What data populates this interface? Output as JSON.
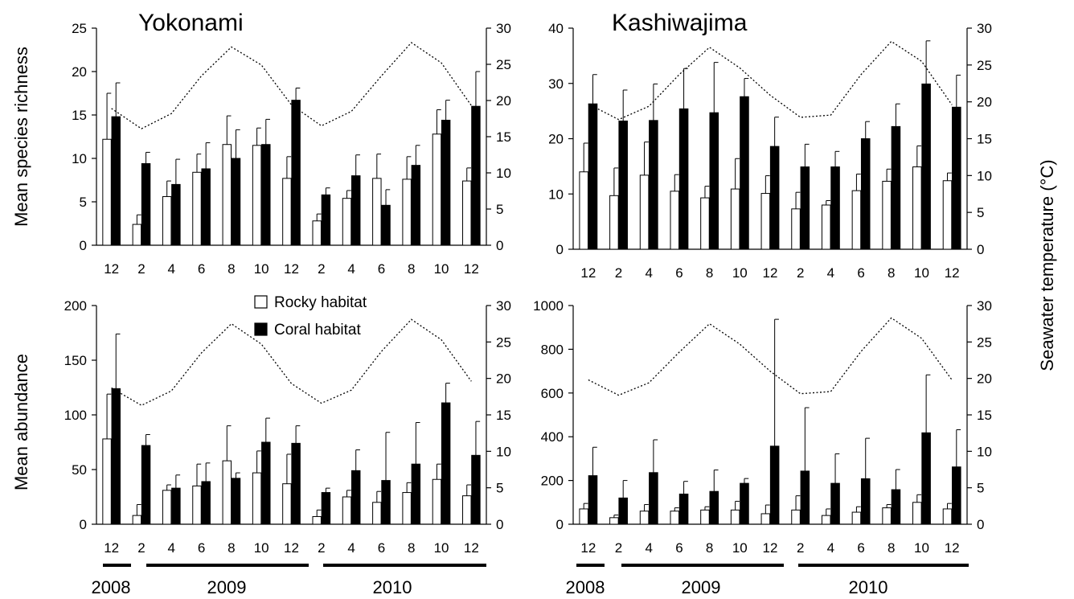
{
  "figure": {
    "titles": {
      "yokonami": "Yokonami",
      "kashiwajima": "Kashiwajima"
    },
    "ylabels": {
      "richness": "Mean species richness",
      "abundance": "Mean abundance",
      "temperature": "Seawater temperature (°C)"
    },
    "legend": {
      "rocky": "Rocky habitat",
      "coral": "Coral habitat"
    },
    "years": {
      "y2008": "2008",
      "y2009": "2009",
      "y2010": "2010"
    }
  },
  "colors": {
    "rocky": "#ffffff",
    "coral": "#000000",
    "temperature": "#000000"
  },
  "chart_data": [
    {
      "id": "yok_rich",
      "type": "bar",
      "title": "Yokonami",
      "xlabel": "",
      "ylabel": "Mean species richness",
      "categories": [
        "12",
        "2",
        "4",
        "6",
        "8",
        "10",
        "12",
        "2",
        "4",
        "6",
        "8",
        "10",
        "12"
      ],
      "ylim": [
        0,
        25
      ],
      "yticks": [
        0,
        5,
        10,
        15,
        20,
        25
      ],
      "y2lim": [
        0,
        30
      ],
      "y2ticks": [
        0,
        5,
        10,
        15,
        20,
        25,
        30
      ],
      "series": [
        {
          "name": "Rocky habitat",
          "values": [
            12.2,
            2.4,
            5.6,
            8.4,
            11.6,
            11.5,
            7.7,
            2.8,
            5.4,
            7.7,
            7.6,
            12.8,
            7.4
          ],
          "err": [
            5.3,
            1.1,
            1.8,
            2.1,
            3.3,
            2.0,
            2.5,
            0.8,
            0.9,
            2.8,
            2.6,
            2.8,
            1.5
          ]
        },
        {
          "name": "Coral habitat",
          "values": [
            14.8,
            9.4,
            7.0,
            8.8,
            10.0,
            11.6,
            16.7,
            5.8,
            8.0,
            4.6,
            9.2,
            14.4,
            16.0
          ],
          "err": [
            3.9,
            1.3,
            2.9,
            3.0,
            3.3,
            2.9,
            1.4,
            0.8,
            2.4,
            1.8,
            2.3,
            2.3,
            4.0
          ]
        },
        {
          "name": "Seawater temperature",
          "axis": "right",
          "values": [
            18.9,
            16.1,
            18.2,
            23.4,
            27.4,
            24.9,
            19.4,
            16.5,
            18.5,
            23.4,
            28.0,
            25.2,
            19.3
          ]
        }
      ]
    },
    {
      "id": "kas_rich",
      "type": "bar",
      "title": "Kashiwajima",
      "xlabel": "",
      "ylabel": "",
      "categories": [
        "12",
        "2",
        "4",
        "6",
        "8",
        "10",
        "12",
        "2",
        "4",
        "6",
        "8",
        "10",
        "12"
      ],
      "ylim": [
        0,
        40
      ],
      "yticks": [
        0,
        10,
        20,
        30,
        40
      ],
      "y2lim": [
        0,
        30
      ],
      "y2ticks": [
        0,
        5,
        10,
        15,
        20,
        25,
        30
      ],
      "series": [
        {
          "name": "Rocky habitat",
          "values": [
            14.0,
            9.7,
            13.4,
            10.5,
            9.3,
            10.9,
            10.1,
            7.3,
            8.0,
            10.6,
            12.3,
            14.9,
            12.4
          ],
          "err": [
            5.2,
            5.0,
            6.0,
            3.0,
            2.1,
            5.5,
            3.2,
            3.0,
            0.8,
            3.0,
            2.2,
            3.8,
            1.4
          ]
        },
        {
          "name": "Coral habitat",
          "values": [
            26.3,
            23.2,
            23.3,
            25.4,
            24.7,
            27.6,
            18.6,
            14.9,
            14.9,
            20.0,
            22.2,
            29.9,
            25.7
          ],
          "err": [
            5.3,
            5.6,
            6.6,
            7.3,
            9.1,
            3.3,
            5.3,
            4.1,
            2.8,
            3.1,
            4.1,
            7.8,
            5.8
          ]
        },
        {
          "name": "Seawater temperature",
          "axis": "right",
          "values": [
            19.7,
            17.6,
            19.4,
            23.7,
            27.4,
            24.6,
            20.9,
            17.9,
            18.2,
            23.7,
            28.2,
            25.5,
            19.6
          ]
        }
      ]
    },
    {
      "id": "yok_abun",
      "type": "bar",
      "title": "",
      "xlabel": "",
      "ylabel": "Mean abundance",
      "categories": [
        "12",
        "2",
        "4",
        "6",
        "8",
        "10",
        "12",
        "2",
        "4",
        "6",
        "8",
        "10",
        "12"
      ],
      "ylim": [
        0,
        200
      ],
      "yticks": [
        0,
        50,
        100,
        150,
        200
      ],
      "y2lim": [
        0,
        30
      ],
      "y2ticks": [
        0,
        5,
        10,
        15,
        20,
        25,
        30
      ],
      "series": [
        {
          "name": "Rocky habitat",
          "values": [
            78,
            8,
            31,
            35,
            58,
            47,
            37,
            7,
            25,
            20,
            29,
            41,
            26
          ],
          "err": [
            41,
            10,
            5,
            20,
            32,
            20,
            27,
            6,
            6,
            10,
            9,
            14,
            10
          ]
        },
        {
          "name": "Coral habitat",
          "values": [
            124,
            72,
            33,
            39,
            42,
            75,
            74,
            29,
            49,
            40,
            55,
            111,
            63
          ],
          "err": [
            50,
            10,
            12,
            17,
            5,
            22,
            16,
            4,
            19,
            44,
            38,
            18,
            31
          ]
        },
        {
          "name": "Seawater temperature",
          "axis": "right",
          "values": [
            18.7,
            16.3,
            18.3,
            23.5,
            27.5,
            24.7,
            19.3,
            16.6,
            18.4,
            23.7,
            28.1,
            25.3,
            19.6
          ]
        }
      ]
    },
    {
      "id": "kas_abun",
      "type": "bar",
      "title": "",
      "xlabel": "",
      "ylabel": "",
      "categories": [
        "12",
        "2",
        "4",
        "6",
        "8",
        "10",
        "12",
        "2",
        "4",
        "6",
        "8",
        "10",
        "12"
      ],
      "ylim": [
        0,
        1000
      ],
      "yticks": [
        0,
        200,
        400,
        600,
        800,
        1000
      ],
      "y2lim": [
        0,
        30
      ],
      "y2ticks": [
        0,
        5,
        10,
        15,
        20,
        25,
        30
      ],
      "series": [
        {
          "name": "Rocky habitat",
          "values": [
            70,
            30,
            60,
            60,
            65,
            65,
            48,
            65,
            40,
            55,
            75,
            100,
            70
          ],
          "err": [
            25,
            12,
            30,
            15,
            15,
            40,
            40,
            65,
            30,
            25,
            15,
            35,
            25
          ]
        },
        {
          "name": "Coral habitat",
          "values": [
            222,
            120,
            236,
            138,
            150,
            187,
            357,
            243,
            187,
            208,
            158,
            418,
            262
          ],
          "err": [
            130,
            80,
            150,
            58,
            98,
            22,
            580,
            290,
            135,
            185,
            92,
            265,
            170
          ]
        },
        {
          "name": "Seawater temperature",
          "axis": "right",
          "values": [
            19.8,
            17.7,
            19.4,
            23.6,
            27.5,
            24.7,
            21.0,
            17.9,
            18.2,
            23.7,
            28.3,
            25.5,
            19.8
          ]
        }
      ]
    }
  ]
}
